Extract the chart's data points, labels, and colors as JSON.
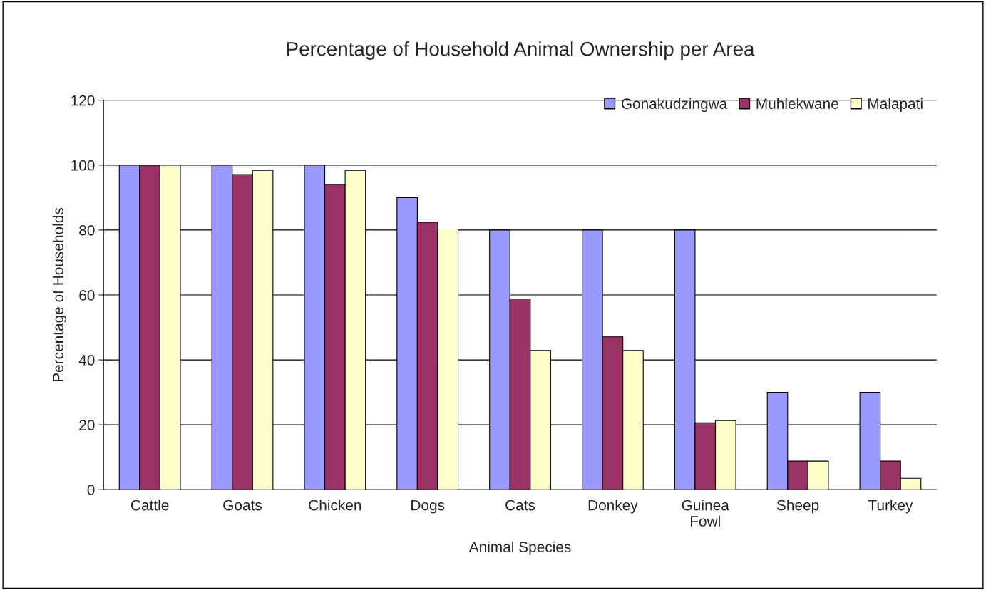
{
  "chart_data": {
    "type": "bar",
    "title": "Percentage of Household Animal Ownership per Area",
    "xlabel": "Animal Species",
    "ylabel": "Percentage of Households",
    "categories": [
      "Cattle",
      "Goats",
      "Chicken",
      "Dogs",
      "Cats",
      "Donkey",
      "Guinea Fowl",
      "Sheep",
      "Turkey"
    ],
    "series": [
      {
        "name": "Gonakudzingwa",
        "color": "#9999ff",
        "values": [
          100,
          100,
          100,
          90,
          80,
          80,
          80,
          30,
          30
        ]
      },
      {
        "name": "Muhlekwane",
        "color": "#993366",
        "values": [
          100,
          97.1,
          94.1,
          82.4,
          58.8,
          47.1,
          20.6,
          8.8,
          8.8
        ]
      },
      {
        "name": "Malapati",
        "color": "#ffffcc",
        "values": [
          100,
          98.4,
          98.4,
          80.3,
          42.9,
          42.9,
          21.3,
          8.8,
          3.5
        ]
      }
    ],
    "ylim": [
      0,
      120
    ],
    "yticks": [
      0,
      20,
      40,
      60,
      80,
      100,
      120
    ],
    "grid": "y",
    "legend": "top right"
  }
}
